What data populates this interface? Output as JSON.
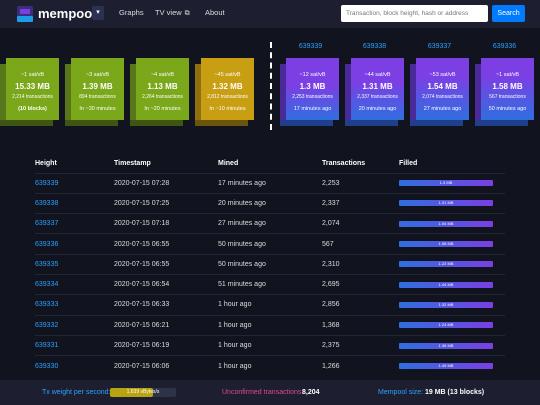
{
  "header": {
    "logo_text": "mempool",
    "dropdown_icon": "▾",
    "nav": [
      {
        "label": "Graphs"
      },
      {
        "label": "TV view",
        "icon": "external-link-icon"
      },
      {
        "label": "About"
      }
    ],
    "search_placeholder": "Transaction, block height, hash or address",
    "search_button": "Search"
  },
  "projected_blocks": [
    {
      "fee": "~1 sat/vB",
      "size": "15.33 MB",
      "tx": "2,214 transactions",
      "time": "(10 blocks)",
      "color": "#7ba71a"
    },
    {
      "fee": "~3 sat/vB",
      "size": "1.39 MB",
      "tx": "894 transactions",
      "time": "In ~30 minutes",
      "color": "#7ba71a"
    },
    {
      "fee": "~4 sat/vB",
      "size": "1.13 MB",
      "tx": "2,264 transactions",
      "time": "In ~20 minutes",
      "color": "#7ba71a"
    },
    {
      "fee": "~45 sat/vB",
      "size": "1.32 MB",
      "tx": "2,812 transactions",
      "time": "In ~10 minutes",
      "color": "#c89e12"
    }
  ],
  "mined_blocks": [
    {
      "height": "639339",
      "fee": "~12 sat/vB",
      "size": "1.3 MB",
      "tx": "2,253 transactions",
      "time": "17 minutes ago"
    },
    {
      "height": "639338",
      "fee": "~44 sat/vB",
      "size": "1.31 MB",
      "tx": "2,337 transactions",
      "time": "20 minutes ago"
    },
    {
      "height": "639337",
      "fee": "~53 sat/vB",
      "size": "1.54 MB",
      "tx": "2,074 transactions",
      "time": "27 minutes ago"
    },
    {
      "height": "639336",
      "fee": "~1 sat/vB",
      "size": "1.58 MB",
      "tx": "567 transactions",
      "time": "50 minutes ago"
    }
  ],
  "table": {
    "headers": [
      "Height",
      "Timestamp",
      "Mined",
      "Transactions",
      "Filled"
    ],
    "rows": [
      {
        "height": "639339",
        "timestamp": "2020-07-15 07:28",
        "mined": "17 minutes ago",
        "transactions": "2,253",
        "filled": "1.3 MB"
      },
      {
        "height": "639338",
        "timestamp": "2020-07-15 07:25",
        "mined": "20 minutes ago",
        "transactions": "2,337",
        "filled": "1.31 MB"
      },
      {
        "height": "639337",
        "timestamp": "2020-07-15 07:18",
        "mined": "27 minutes ago",
        "transactions": "2,074",
        "filled": "1.54 MB"
      },
      {
        "height": "639336",
        "timestamp": "2020-07-15 06:55",
        "mined": "50 minutes ago",
        "transactions": "567",
        "filled": "1.58 MB"
      },
      {
        "height": "639335",
        "timestamp": "2020-07-15 06:55",
        "mined": "50 minutes ago",
        "transactions": "2,310",
        "filled": "1.22 MB"
      },
      {
        "height": "639334",
        "timestamp": "2020-07-15 06:54",
        "mined": "51 minutes ago",
        "transactions": "2,695",
        "filled": "1.44 MB"
      },
      {
        "height": "639333",
        "timestamp": "2020-07-15 06:33",
        "mined": "1 hour ago",
        "transactions": "2,856",
        "filled": "1.32 MB"
      },
      {
        "height": "639332",
        "timestamp": "2020-07-15 06:21",
        "mined": "1 hour ago",
        "transactions": "1,368",
        "filled": "1.24 MB"
      },
      {
        "height": "639331",
        "timestamp": "2020-07-15 06:19",
        "mined": "1 hour ago",
        "transactions": "2,375",
        "filled": "1.36 MB"
      },
      {
        "height": "639330",
        "timestamp": "2020-07-15 06:06",
        "mined": "1 hour ago",
        "transactions": "1,266",
        "filled": "1.49 MB"
      }
    ]
  },
  "footer": {
    "weight_label": "Tx weight per second:",
    "weight_value": "1,639 vBytes/s",
    "weight_fill": 0.65,
    "unconfirmed_label": "Unconfirmed transactions:",
    "unconfirmed_value": "8,204",
    "mempool_label": "Mempool size:",
    "mempool_value": "19 MB (13 blocks)"
  },
  "colors": {
    "background": "#11131f",
    "navbar": "#1d1f31",
    "accent": "#2aa2ff",
    "projected_green": "#7ba71a",
    "projected_gold": "#c89e12",
    "mined_purple": "#7b3fe4"
  }
}
